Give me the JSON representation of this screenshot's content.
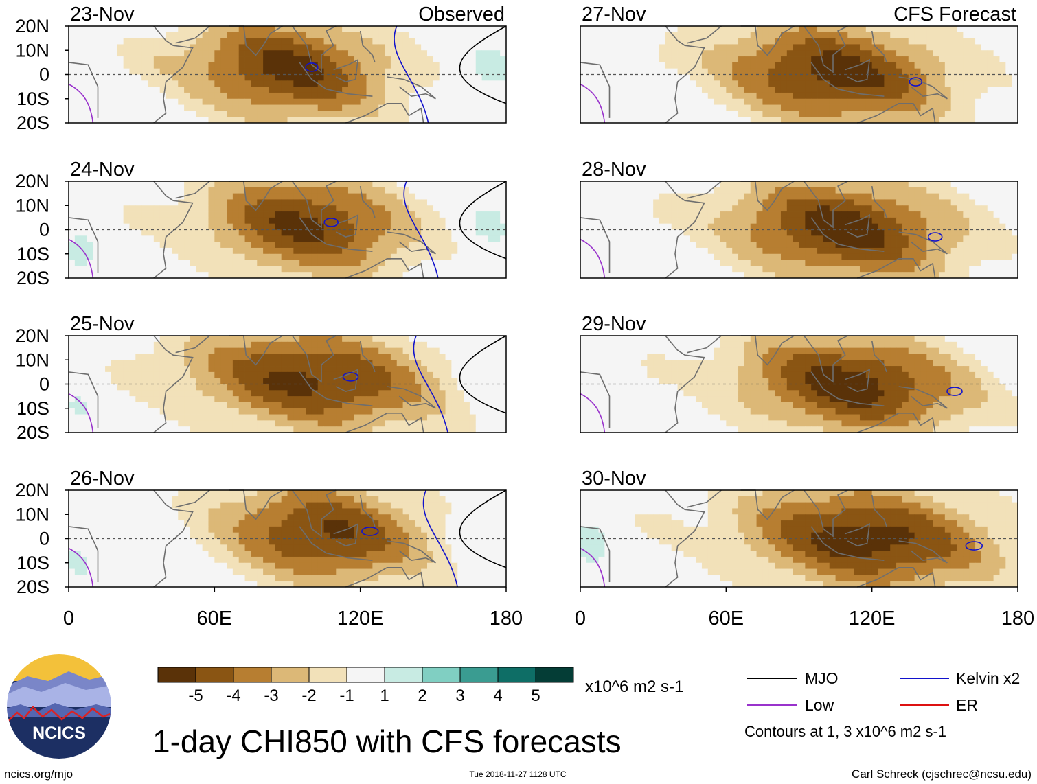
{
  "chart_data": {
    "type": "heatmap",
    "title": "1-day CHI850 with CFS forecasts",
    "panel_label_observed": "Observed",
    "panel_label_forecast": "CFS Forecast",
    "latitude_ticks": [
      "20N",
      "10N",
      "0",
      "10S",
      "20S"
    ],
    "longitude_ticks": [
      "0",
      "60E",
      "120E",
      "180"
    ],
    "lon_range": [
      0,
      180
    ],
    "lat_range": [
      -20,
      20
    ],
    "panels": [
      {
        "date": "23-Nov",
        "kind": "observed",
        "low_lon": 90,
        "low_width": 45,
        "low_min": -5.3
      },
      {
        "date": "24-Nov",
        "kind": "observed",
        "low_lon": 98,
        "low_width": 45,
        "low_min": -5.2
      },
      {
        "date": "25-Nov",
        "kind": "observed",
        "low_lon": 100,
        "low_width": 55,
        "low_min": -5.3
      },
      {
        "date": "26-Nov",
        "kind": "observed",
        "low_lon": 105,
        "low_width": 45,
        "low_min": -5.2
      },
      {
        "date": "27-Nov",
        "kind": "forecast",
        "low_lon": 105,
        "low_width": 50,
        "low_min": -5.5
      },
      {
        "date": "28-Nov",
        "kind": "forecast",
        "low_lon": 108,
        "low_width": 50,
        "low_min": -5.5
      },
      {
        "date": "29-Nov",
        "kind": "forecast",
        "low_lon": 112,
        "low_width": 50,
        "low_min": -5.5
      },
      {
        "date": "30-Nov",
        "kind": "forecast",
        "low_lon": 118,
        "low_width": 55,
        "low_min": -5.6
      }
    ],
    "colorbar": {
      "labels": [
        "-5",
        "-4",
        "-3",
        "-2",
        "-1",
        "1",
        "2",
        "3",
        "4",
        "5"
      ],
      "colors": [
        "#5a3208",
        "#8a5513",
        "#b77e31",
        "#dcb877",
        "#f2e1b9",
        "#f5f5f5",
        "#c8ebe3",
        "#80cfc2",
        "#3a9c91",
        "#0e6e66",
        "#043d36"
      ],
      "units": "x10^6 m2 s-1"
    },
    "legend": {
      "entries": [
        {
          "label": "MJO",
          "color": "#000000"
        },
        {
          "label": "Kelvin x2",
          "color": "#1212cc"
        },
        {
          "label": "Low",
          "color": "#9932cc"
        },
        {
          "label": "ER",
          "color": "#dd1111"
        }
      ],
      "note": "Contours at 1, 3 x10^6 m2 s-1"
    }
  },
  "logo": {
    "text": "NCICS"
  },
  "footer": {
    "left": "ncics.org/mjo",
    "center": "Tue 2018-11-27 1128 UTC",
    "right": "Carl Schreck (cjschrec@ncsu.edu)"
  }
}
